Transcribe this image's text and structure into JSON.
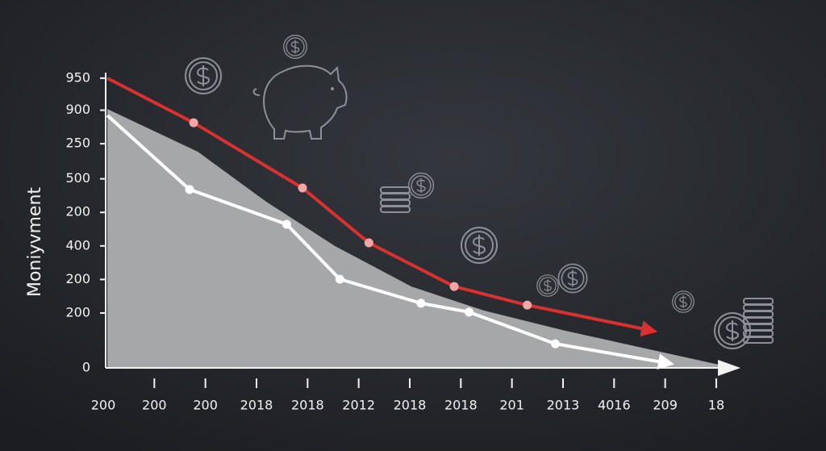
{
  "chart_data": {
    "type": "line",
    "y_label": "Moniyvment",
    "xlim": [
      0,
      12.4
    ],
    "xticks": [
      {
        "value": 0,
        "label": "200"
      },
      {
        "value": 1,
        "label": "200"
      },
      {
        "value": 2,
        "label": "200"
      },
      {
        "value": 3,
        "label": "2018"
      },
      {
        "value": 4,
        "label": "2018"
      },
      {
        "value": 5,
        "label": "2012"
      },
      {
        "value": 6,
        "label": "2018"
      },
      {
        "value": 7,
        "label": "2018"
      },
      {
        "value": 8,
        "label": "201"
      },
      {
        "value": 9,
        "label": "2013"
      },
      {
        "value": 10,
        "label": "4016"
      },
      {
        "value": 11,
        "label": "209"
      },
      {
        "value": 12,
        "label": "18"
      }
    ],
    "ylim": [
      0,
      1000
    ],
    "yticks": [
      0,
      {
        "value": 180,
        "label": "200"
      },
      {
        "value": 290,
        "label": "200"
      },
      400,
      {
        "value": 510,
        "label": "200"
      },
      {
        "value": 620,
        "label": "500"
      },
      {
        "value": 735,
        "label": "250"
      },
      {
        "value": 845,
        "label": "900"
      },
      950
    ],
    "area": {
      "color": "#a6a7a8",
      "x": [
        0.08,
        1.85,
        3.19,
        4.53,
        6.03,
        7.45,
        9.04,
        12.04
      ],
      "values": [
        849,
        709,
        545,
        400,
        267,
        188,
        122,
        11
      ]
    },
    "series": [
      {
        "color": "#d93030",
        "x": [
          0.08,
          1.77,
          3.9,
          5.2,
          6.87,
          8.3,
          10.6
        ],
        "values": [
          950,
          804,
          590,
          410,
          267,
          206,
          127
        ]
      },
      {
        "color": "#ffffff",
        "x": [
          0.08,
          1.69,
          3.59,
          4.63,
          6.22,
          7.16,
          8.85,
          10.93
        ],
        "values": [
          828,
          585,
          471,
          291,
          212,
          183,
          79,
          19
        ]
      }
    ]
  }
}
